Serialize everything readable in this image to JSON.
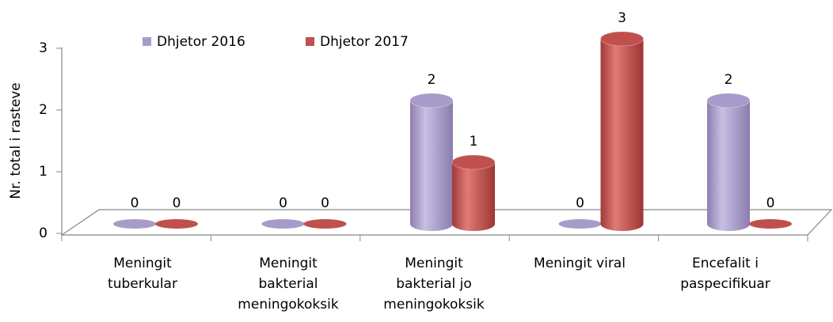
{
  "chart_data": {
    "type": "bar3d",
    "y_axis_label": "Nr. total i rasteve",
    "categories": [
      [
        "Meningit",
        "tuberkular"
      ],
      [
        "Meningit",
        "bakterial",
        "meningokoksik"
      ],
      [
        "Meningit",
        "bakterial jo",
        "meningokoksik"
      ],
      [
        "Meningit viral"
      ],
      [
        "Encefalit  i",
        "paspecifikuar"
      ]
    ],
    "series": [
      {
        "name": "Dhjetor 2016",
        "color": "#a99bc9",
        "values": [
          0,
          0,
          2,
          0,
          2
        ]
      },
      {
        "name": "Dhjetor  2017",
        "color": "#c0504d",
        "values": [
          0,
          0,
          1,
          3,
          0
        ]
      }
    ],
    "ylim": [
      0,
      3
    ],
    "yticks": [
      0,
      1,
      2,
      3
    ],
    "legend": "top"
  }
}
